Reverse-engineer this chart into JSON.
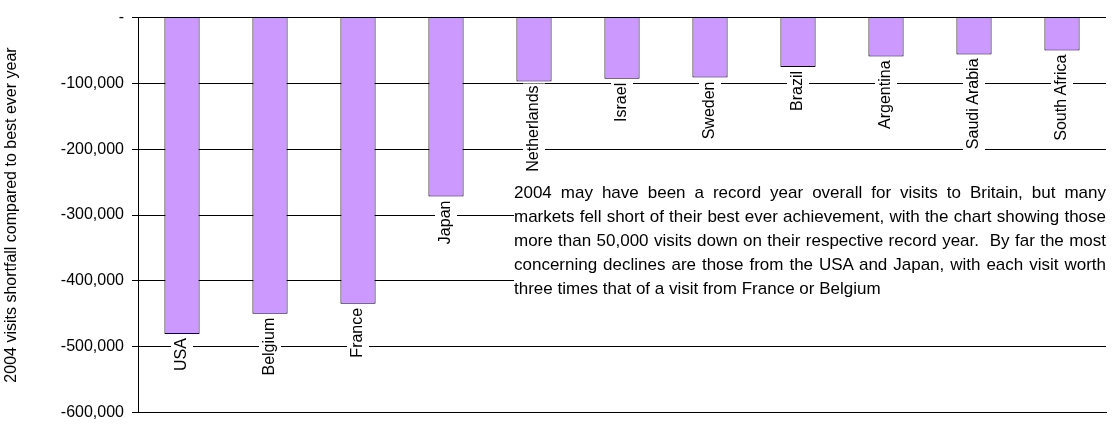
{
  "chart_data": {
    "type": "bar",
    "ylabel": "2004 visits shortfall compared to best ever year",
    "categories": [
      "USA",
      "Belgium",
      "France",
      "Japan",
      "Netherlands",
      "Israel",
      "Sweden",
      "Brazil",
      "Argentina",
      "Saudi Arabia",
      "South Africa"
    ],
    "values": [
      -481000,
      -450000,
      -435000,
      -272000,
      -97000,
      -93000,
      -91000,
      -75000,
      -59000,
      -56000,
      -50000
    ],
    "color": "#cc99ff",
    "ylim": [
      -600000,
      0
    ],
    "yticks": [
      {
        "value": 0,
        "label": "-"
      },
      {
        "value": -100000,
        "label": "-100,000"
      },
      {
        "value": -200000,
        "label": "-200,000"
      },
      {
        "value": -300000,
        "label": "-300,000"
      },
      {
        "value": -400000,
        "label": "-400,000"
      },
      {
        "value": -500000,
        "label": "-500,000"
      },
      {
        "value": -600000,
        "label": "-600,000"
      }
    ],
    "grid": "y",
    "tick_labels": "y",
    "legend": false,
    "annotations": [
      "2004 may have been a record year overall for visits to Britain, but many markets fell short of their best ever achievement, with the chart showing those more than 50,000 visits down on their respective record year.  By far the most concerning declines are those from the USA and Japan, with each visit worth three times that of a visit from France or Belgium"
    ]
  }
}
